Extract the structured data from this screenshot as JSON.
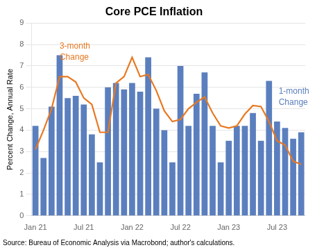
{
  "chart_data": {
    "type": "bar",
    "title": "Core PCE Inflation",
    "ylabel": "Percent Change, Annual Rate",
    "source": "Source: Bureau of Economic Analysis via Macrobond; author's calculations.",
    "categories": [
      "Jan 21",
      null,
      null,
      null,
      null,
      null,
      "Jul 21",
      null,
      null,
      null,
      null,
      null,
      "Jan 22",
      null,
      null,
      null,
      null,
      null,
      "Jul 22",
      null,
      null,
      null,
      null,
      null,
      "Jan 23",
      null,
      null,
      null,
      null,
      null,
      "Jul 23",
      null,
      null,
      null
    ],
    "series": [
      {
        "type": "bar",
        "color": "#5B7FBE",
        "values": [
          4.2,
          2.7,
          5.1,
          7.5,
          5.5,
          5.6,
          5.2,
          3.8,
          2.5,
          6.0,
          6.2,
          5.9,
          6.2,
          5.8,
          7.4,
          5.0,
          4.0,
          2.5,
          7.0,
          4.2,
          5.7,
          6.7,
          4.2,
          2.5,
          3.5,
          4.2,
          4.2,
          4.8,
          3.5,
          6.3,
          4.4,
          4.1,
          3.6,
          3.9
        ]
      },
      {
        "type": "line",
        "color": "#E87820",
        "values": [
          3.1,
          4.0,
          5.0,
          6.5,
          6.5,
          6.25,
          5.5,
          5.2,
          3.9,
          3.9,
          6.2,
          6.5,
          7.4,
          6.5,
          6.6,
          5.85,
          4.9,
          4.4,
          4.5,
          5.0,
          5.3,
          5.55,
          4.8,
          4.2,
          4.1,
          4.2,
          4.75,
          5.15,
          5.1,
          4.4,
          3.5,
          3.3,
          2.55,
          2.4
        ]
      }
    ],
    "annotations": [
      {
        "text": "3-month\nChange",
        "color": "#E87820",
        "x": 3.0,
        "y": 8.1
      },
      {
        "text": "1-month\nChange",
        "color": "#5B7FBE",
        "x": 30.2,
        "y": 6.0
      }
    ],
    "ylim": [
      0,
      9
    ],
    "yticks": [
      0,
      1,
      2,
      3,
      4,
      5,
      6,
      7,
      8,
      9
    ],
    "grid": true
  }
}
